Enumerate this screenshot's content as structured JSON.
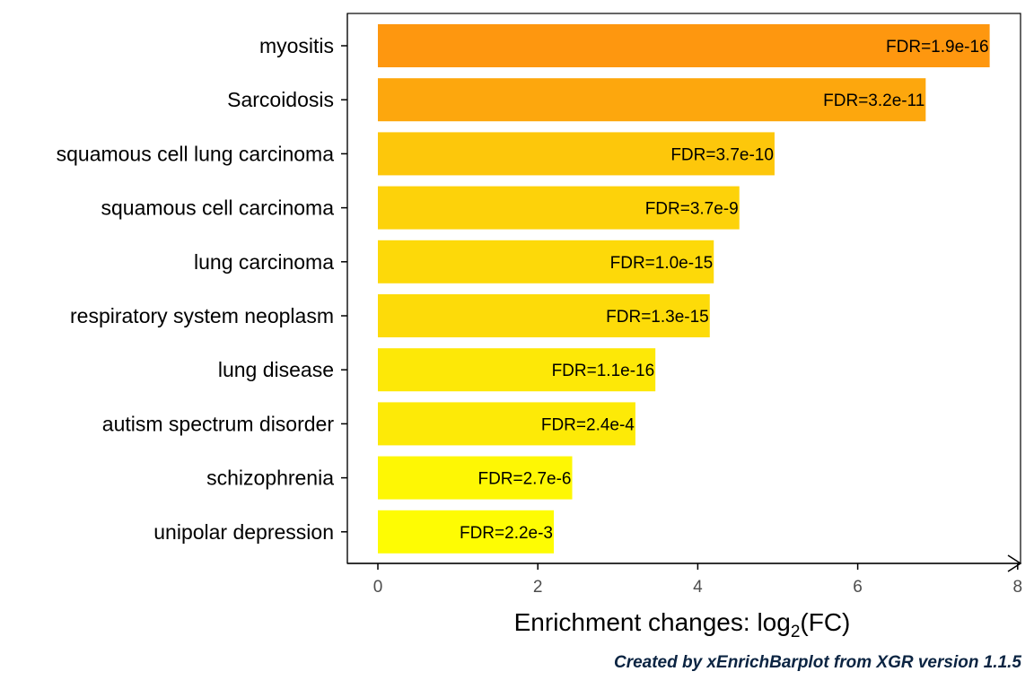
{
  "chart_data": {
    "type": "bar",
    "orientation": "horizontal",
    "categories": [
      "myositis",
      "Sarcoidosis",
      "squamous cell lung carcinoma",
      "squamous cell carcinoma",
      "lung carcinoma",
      "respiratory system neoplasm",
      "lung disease",
      "autism spectrum disorder",
      "schizophrenia",
      "unipolar depression"
    ],
    "values": [
      7.65,
      6.85,
      4.96,
      4.52,
      4.2,
      4.15,
      3.47,
      3.22,
      2.43,
      2.2
    ],
    "bar_labels": [
      "FDR=1.9e-16",
      "FDR=3.2e-11",
      "FDR=3.7e-10",
      "FDR=3.7e-9",
      "FDR=1.0e-15",
      "FDR=1.3e-15",
      "FDR=1.1e-16",
      "FDR=2.4e-4",
      "FDR=2.7e-6",
      "FDR=2.2e-3"
    ],
    "bar_colors": [
      "#FE970F",
      "#FDA70D",
      "#FDC70B",
      "#FDD20A",
      "#FDD909",
      "#FDDB09",
      "#FDE807",
      "#FDEA07",
      "#FEF704",
      "#FEFC03"
    ],
    "xlabel_main": "Enrichment changes: log",
    "xlabel_sub": "2",
    "xlabel_tail": "(FC)",
    "xlim": [
      0,
      8
    ],
    "xticks": [
      0,
      2,
      4,
      6,
      8
    ],
    "grid": false,
    "legend": "none"
  },
  "caption": "Created by xEnrichBarplot from XGR version 1.1.5"
}
